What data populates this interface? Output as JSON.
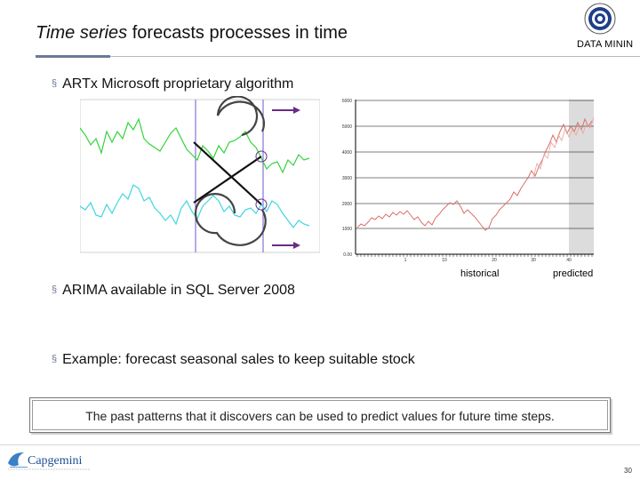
{
  "slide": {
    "title_italic": "Time series",
    "title_rest": " forecasts processes in time",
    "logo_text": "DATA MININ",
    "page_number": "30"
  },
  "bullets": [
    "ARTx Microsoft proprietary algorithm",
    "ARIMA available in SQL Server 2008",
    "Example: forecast seasonal sales to keep suitable stock"
  ],
  "forecast_chart": {
    "y_ticks": [
      "0.00",
      "1000",
      "2000",
      "3000",
      "4000",
      "5000",
      "6000"
    ],
    "x_ticks": [
      "1",
      "10",
      "20",
      "30",
      "40"
    ],
    "caption_historical": "historical",
    "caption_predicted": "predicted"
  },
  "callout": {
    "text": "The past patterns that it discovers can be used to predict values for future time steps."
  },
  "footer": {
    "brand": "Capgemini"
  },
  "colors": {
    "accent": "#6b7a99",
    "green_series": "#33d43a",
    "cyan_series": "#3fd6e0",
    "history_series": "#d9706a",
    "marker": "#6a2b86"
  }
}
